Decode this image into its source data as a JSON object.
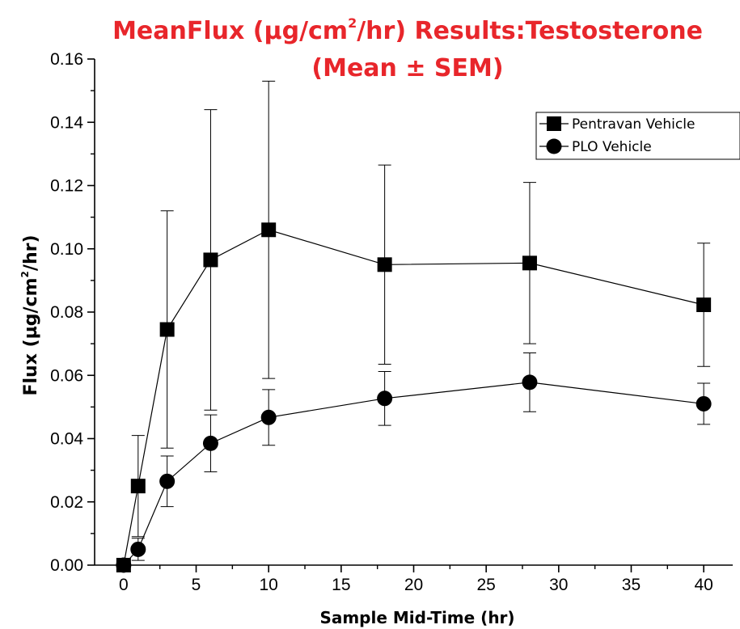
{
  "chart_data": {
    "type": "line",
    "title_line1_a": "MeanFlux (µg/cm",
    "title_sup": "2",
    "title_line1_b": "/hr) Results:Testosterone",
    "title_line2": "(Mean ± SEM)",
    "xlabel": "Sample Mid-Time (hr)",
    "ylabel_a": "Flux (µg/cm",
    "ylabel_sup": "2",
    "ylabel_b": "/hr)",
    "xlim": [
      -2,
      42
    ],
    "ylim": [
      0,
      0.16
    ],
    "x_ticks": [
      0,
      5,
      10,
      15,
      20,
      25,
      30,
      35,
      40
    ],
    "y_ticks": [
      "0.00",
      "0.02",
      "0.04",
      "0.06",
      "0.08",
      "0.10",
      "0.12",
      "0.14",
      "0.16"
    ],
    "legend_position": "top-right",
    "series": [
      {
        "name": "Pentravan Vehicle",
        "marker": "square",
        "x": [
          0,
          1,
          3,
          6,
          10,
          18,
          28,
          40
        ],
        "y": [
          0.0,
          0.025,
          0.0745,
          0.0965,
          0.106,
          0.095,
          0.0955,
          0.0823
        ],
        "err": [
          0.0,
          0.016,
          0.0375,
          0.0475,
          0.047,
          0.0315,
          0.0255,
          0.0195
        ]
      },
      {
        "name": "PLO Vehicle",
        "marker": "circle",
        "x": [
          0,
          1,
          3,
          6,
          10,
          18,
          28,
          40
        ],
        "y": [
          0.0,
          0.005,
          0.0265,
          0.0385,
          0.0467,
          0.0527,
          0.0578,
          0.051
        ],
        "err": [
          0.0,
          0.0035,
          0.008,
          0.009,
          0.0088,
          0.0085,
          0.0093,
          0.0065
        ]
      }
    ]
  }
}
